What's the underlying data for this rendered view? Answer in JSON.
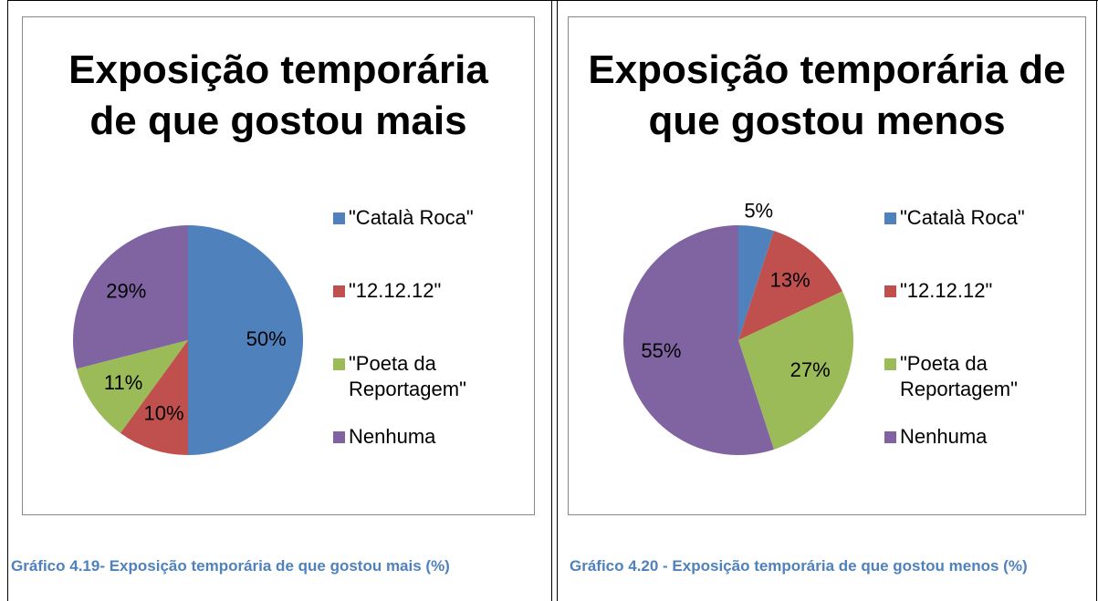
{
  "chart_data": [
    {
      "type": "pie",
      "title": "Exposição temporária de que gostou mais",
      "categories": [
        "\"Català Roca\"",
        "\"12.12.12\"",
        "\"Poeta da Reportagem\"",
        "Nenhuma"
      ],
      "values": [
        50,
        10,
        11,
        29
      ],
      "value_labels": [
        "50%",
        "10%",
        "11%",
        "29%"
      ],
      "colors": [
        "#4f81bd",
        "#c0504d",
        "#9bbb59",
        "#8064a2"
      ],
      "legend": "right"
    },
    {
      "type": "pie",
      "title": "Exposição temporária de que gostou menos",
      "categories": [
        "\"Català Roca\"",
        "\"12.12.12\"",
        "\"Poeta da Reportagem\"",
        "Nenhuma"
      ],
      "values": [
        5,
        13,
        27,
        55
      ],
      "value_labels": [
        "5%",
        "13%",
        "27%",
        "55%"
      ],
      "colors": [
        "#4f81bd",
        "#c0504d",
        "#9bbb59",
        "#8064a2"
      ],
      "legend": "right"
    }
  ],
  "captions": [
    "Gráfico 4.19- Exposição temporária de que gostou mais (%)",
    "Gráfico 4.20 - Exposição temporária de que gostou menos (%)"
  ]
}
